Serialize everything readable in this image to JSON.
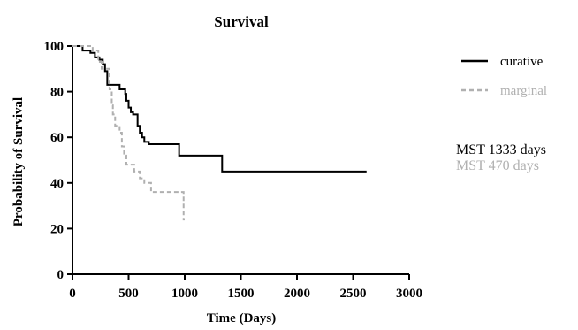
{
  "chart_data": {
    "type": "line",
    "step": true,
    "title": "Survival",
    "xlabel": "Time (Days)",
    "ylabel": "Probability of Survival",
    "xlim": [
      0,
      3000
    ],
    "ylim": [
      0,
      100
    ],
    "xticks": [
      0,
      500,
      1000,
      1500,
      2000,
      2500,
      3000
    ],
    "yticks": [
      0,
      20,
      40,
      60,
      80,
      100
    ],
    "grid": false,
    "legend_position": "right",
    "series": [
      {
        "name": "curative",
        "color": "#000000",
        "dash": "solid",
        "x": [
          0,
          90,
          160,
          200,
          240,
          270,
          290,
          310,
          420,
          470,
          480,
          500,
          520,
          540,
          580,
          600,
          620,
          640,
          680,
          950,
          1333,
          2620
        ],
        "y": [
          100,
          98,
          97,
          95,
          94,
          92,
          89,
          83,
          81,
          79,
          76,
          73,
          71,
          70,
          65,
          62,
          60,
          58,
          57,
          52,
          45,
          45
        ]
      },
      {
        "name": "marginal",
        "color": "#b0b0b0",
        "dash": "dashed",
        "x": [
          0,
          180,
          230,
          260,
          330,
          350,
          360,
          380,
          420,
          440,
          460,
          480,
          550,
          600,
          640,
          700,
          940,
          990,
          1000
        ],
        "y": [
          100,
          98,
          93,
          90,
          81,
          74,
          70,
          65,
          62,
          56,
          52,
          48,
          45,
          42,
          40,
          36,
          36,
          24,
          24
        ]
      }
    ],
    "annotations": [
      {
        "text": "MST 1333 days",
        "color": "#000000"
      },
      {
        "text": "MST 470 days",
        "color": "#b0b0b0"
      }
    ]
  }
}
